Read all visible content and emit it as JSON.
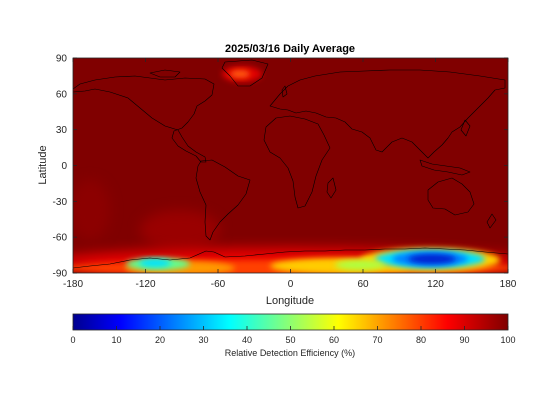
{
  "map": {
    "title": "2025/03/16 Daily Average",
    "xlabel": "Longitude",
    "ylabel": "Latitude",
    "xlim": [
      -180,
      180
    ],
    "ylim": [
      -90,
      90
    ],
    "xticks": [
      -180,
      -120,
      -60,
      0,
      60,
      120,
      180
    ],
    "yticks": [
      -90,
      -60,
      -30,
      0,
      30,
      60,
      90
    ],
    "colormap": "jet",
    "background_value": 100,
    "low_regions": [
      {
        "name": "greenland-anomaly",
        "lon": -40,
        "lat": 74,
        "value": 82
      },
      {
        "name": "antarctic-pacific-sector",
        "lon": -120,
        "lat": -83,
        "value": 42
      },
      {
        "name": "antarctic-indian-sector",
        "lon": 115,
        "lat": -80,
        "value": 18
      },
      {
        "name": "antarctic-atlantic-sector",
        "lon": 40,
        "lat": -82,
        "value": 65
      }
    ]
  },
  "colorbar": {
    "label": "Relative Detection Efficiency (%)",
    "range": [
      0,
      100
    ],
    "ticks": [
      0,
      10,
      20,
      30,
      40,
      50,
      60,
      70,
      80,
      90,
      100
    ]
  },
  "colors": {
    "dark_red": "#800000",
    "coastline": "#000000"
  }
}
